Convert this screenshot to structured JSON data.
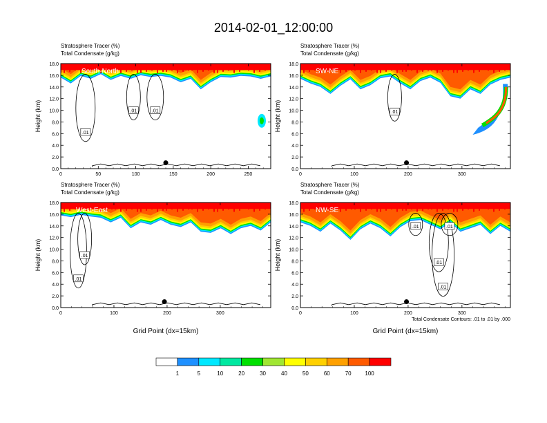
{
  "title": "2014-02-01_12:00:00",
  "header_line1": "Stratosphere Tracer   (%)",
  "header_line2": "Total Condensate   (g/kg)",
  "ylabel": "Height (km)",
  "xlabel": "Grid Point (dx=15km)",
  "contour_note": "Total Condensate Contours: .01 to .01 by .000",
  "chart_data": [
    {
      "type": "heatmap",
      "name": "South-North",
      "xlim": [
        0,
        280
      ],
      "ylim": [
        0,
        18
      ],
      "xticks": [
        0,
        50,
        100,
        150,
        200,
        250
      ],
      "yticks": [
        "0.0",
        "2.0",
        "4.0",
        "6.0",
        "8.0",
        "10.0",
        "12.0",
        "14.0",
        "16.0",
        "18.0"
      ],
      "marker": {
        "x": 140,
        "y": 1.0
      },
      "contour_labels": [
        {
          "text": ".01",
          "x": 97,
          "y": 10.0
        },
        {
          "text": ".01",
          "x": 126,
          "y": 10.0
        },
        {
          "text": ".01",
          "x": 33,
          "y": 6.3
        }
      ],
      "tracer_base_km": [
        15.6,
        14.6,
        15.9,
        15.4,
        16.2,
        15.2,
        15.9,
        15.4,
        16.0,
        15.7,
        15.9,
        15.6,
        14.8,
        15.4,
        13.6,
        14.8,
        15.7,
        15.6,
        15.9,
        15.8,
        15.4,
        15.8
      ],
      "extra": {
        "x": 268,
        "y": 8.2
      }
    },
    {
      "type": "heatmap",
      "name": "SW-NE",
      "xlim": [
        0,
        390
      ],
      "ylim": [
        0,
        18
      ],
      "xticks": [
        0,
        100,
        200,
        300
      ],
      "yticks": [
        "0.0",
        "2.0",
        "4.0",
        "6.0",
        "8.0",
        "10.0",
        "12.0",
        "14.0",
        "16.0",
        "18.0"
      ],
      "marker": {
        "x": 197,
        "y": 1.0
      },
      "contour_labels": [
        {
          "text": ".01",
          "x": 175,
          "y": 9.8
        }
      ],
      "tracer_base_km": [
        15.4,
        14.6,
        14.0,
        12.8,
        14.2,
        15.3,
        13.6,
        14.3,
        15.5,
        15.8,
        14.6,
        13.6,
        15.0,
        15.6,
        14.7,
        12.4,
        12.0,
        13.6,
        12.8,
        14.4,
        15.2,
        15.6
      ],
      "extra": {
        "x": 355,
        "y": 7.0
      }
    },
    {
      "type": "heatmap",
      "name": "West-East",
      "xlim": [
        0,
        395
      ],
      "ylim": [
        0,
        18
      ],
      "xticks": [
        0,
        100,
        200,
        300
      ],
      "yticks": [
        "0.0",
        "2.0",
        "4.0",
        "6.0",
        "8.0",
        "10.0",
        "12.0",
        "14.0",
        "16.0",
        "18.0"
      ],
      "marker": {
        "x": 195,
        "y": 1.0
      },
      "contour_labels": [
        {
          "text": ".01",
          "x": 45,
          "y": 9.0
        },
        {
          "text": ".01",
          "x": 33,
          "y": 5.0
        }
      ],
      "tracer_base_km": [
        15.8,
        15.5,
        15.9,
        15.6,
        15.4,
        14.6,
        15.4,
        13.6,
        14.6,
        14.2,
        15.0,
        14.2,
        13.8,
        14.6,
        13.0,
        12.8,
        13.6,
        12.6,
        13.6,
        14.0,
        13.2,
        14.6
      ],
      "extra": null
    },
    {
      "type": "heatmap",
      "name": "NW-SE",
      "xlim": [
        0,
        390
      ],
      "ylim": [
        0,
        18
      ],
      "xticks": [
        0,
        100,
        200,
        300
      ],
      "yticks": [
        "0.0",
        "2.0",
        "4.0",
        "6.0",
        "8.0",
        "10.0",
        "12.0",
        "14.0",
        "16.0",
        "18.0"
      ],
      "marker": {
        "x": 197,
        "y": 1.0
      },
      "contour_labels": [
        {
          "text": ".01",
          "x": 214,
          "y": 14.0
        },
        {
          "text": ".01",
          "x": 277,
          "y": 14.0
        },
        {
          "text": ".01",
          "x": 257,
          "y": 7.8
        },
        {
          "text": ".01",
          "x": 265,
          "y": 3.6
        }
      ],
      "tracer_base_km": [
        14.6,
        14.0,
        13.0,
        14.4,
        13.2,
        11.6,
        13.4,
        14.4,
        13.6,
        12.2,
        13.8,
        14.8,
        15.0,
        14.2,
        13.4,
        14.6,
        13.0,
        13.6,
        14.2,
        12.6,
        14.0,
        13.0
      ],
      "extra": null
    }
  ],
  "colorbar": {
    "levels": [
      "1",
      "5",
      "10",
      "20",
      "30",
      "40",
      "50",
      "60",
      "70",
      "100"
    ],
    "colors": [
      "#ffffff",
      "#1e90ff",
      "#00e8ff",
      "#00e8a0",
      "#00e000",
      "#a0e632",
      "#ffff00",
      "#ffd000",
      "#ffa000",
      "#ff5a00",
      "#ff0000"
    ]
  }
}
